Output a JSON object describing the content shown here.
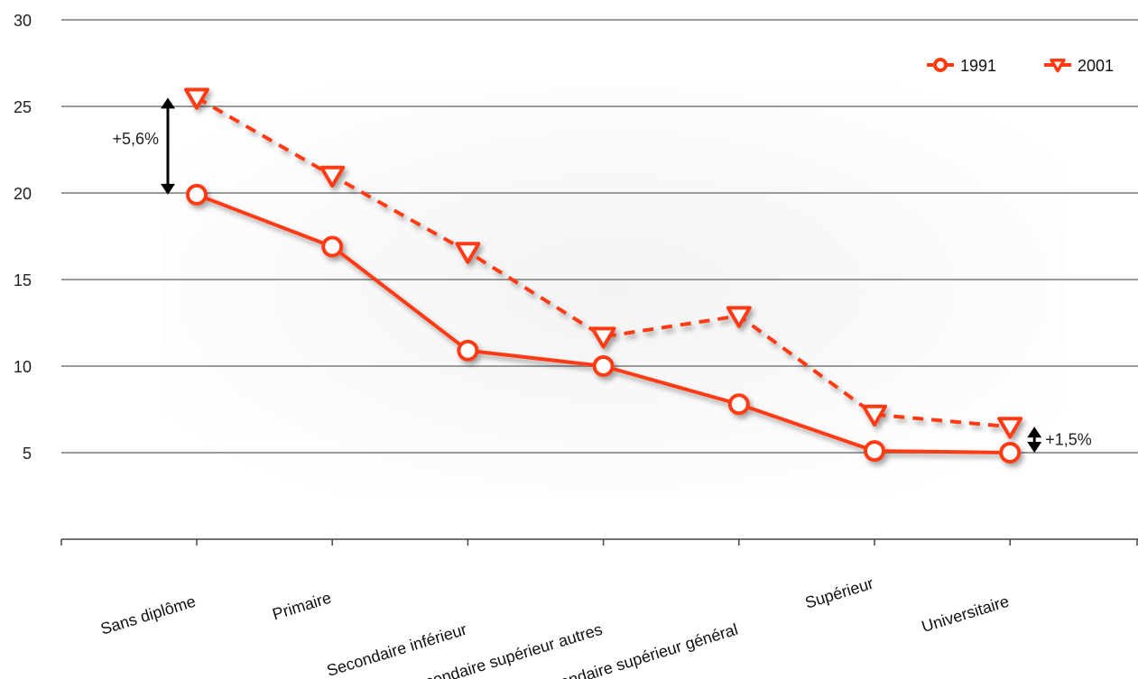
{
  "chart_data": {
    "type": "line",
    "title": "",
    "xlabel": "",
    "ylabel": "",
    "categories": [
      "Sans diplôme",
      "Primaire",
      "Secondaire inférieur",
      "Secondaire supérieur autres",
      "Secondaire supérieur général",
      "Supérieur",
      "Universitaire"
    ],
    "ylim": [
      0,
      30
    ],
    "yticks": [
      5,
      10,
      15,
      20,
      25,
      30
    ],
    "grid": true,
    "legend_position": "top-right",
    "series": [
      {
        "name": "1991",
        "values": [
          19.9,
          16.9,
          10.9,
          10.0,
          7.8,
          5.1,
          5.0
        ],
        "color": "#ff3b12",
        "line": "solid",
        "marker": "circle"
      },
      {
        "name": "2001",
        "values": [
          25.5,
          21.0,
          16.6,
          11.7,
          12.9,
          7.2,
          6.5
        ],
        "color": "#ff3b12",
        "line": "dashed",
        "marker": "triangle-down"
      }
    ],
    "annotations": [
      {
        "text": "+5,6%",
        "category_index": 0,
        "from": 19.9,
        "to": 25.5
      },
      {
        "text": "+1,5%",
        "category_index": 6,
        "from": 5.0,
        "to": 6.5
      }
    ]
  }
}
